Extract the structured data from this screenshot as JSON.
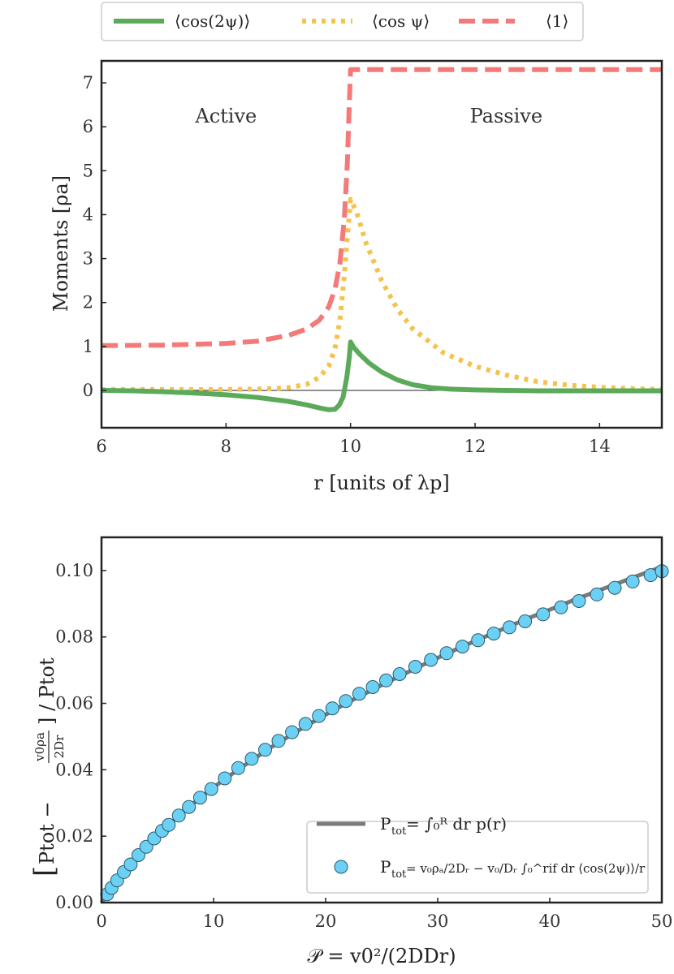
{
  "chart_data": [
    {
      "type": "line",
      "xlabel": "r  [units of λp]",
      "ylabel": "Moments [ρa]",
      "xlim": [
        6,
        15
      ],
      "ylim": [
        -0.85,
        7.5
      ],
      "xticks": [
        "6",
        "8",
        "10",
        "12",
        "14"
      ],
      "xtick_values": [
        6,
        8,
        10,
        12,
        14
      ],
      "yticks": [
        "0",
        "1",
        "2",
        "3",
        "4",
        "5",
        "6",
        "7"
      ],
      "ytick_values": [
        0,
        1,
        2,
        3,
        4,
        5,
        6,
        7
      ],
      "annotations": [
        {
          "text": "Active",
          "x": 8,
          "y": 6.1
        },
        {
          "text": "Passive",
          "x": 12.5,
          "y": 6.1
        }
      ],
      "legend_position": "top (outside)",
      "series": [
        {
          "name": "⟨cos(2ψ)⟩",
          "color": "#5aaa5a",
          "style": "solid",
          "x": [
            6,
            6.5,
            7,
            7.5,
            8,
            8.5,
            9,
            9.3,
            9.5,
            9.65,
            9.75,
            9.82,
            9.88,
            9.94,
            9.98,
            10.0,
            10.05,
            10.15,
            10.3,
            10.5,
            10.75,
            11,
            11.3,
            11.6,
            12,
            12.5,
            13,
            14,
            15
          ],
          "values": [
            0,
            -0.01,
            -0.03,
            -0.06,
            -0.1,
            -0.16,
            -0.25,
            -0.33,
            -0.4,
            -0.44,
            -0.43,
            -0.33,
            -0.15,
            0.3,
            0.75,
            1.1,
            0.98,
            0.82,
            0.62,
            0.42,
            0.24,
            0.13,
            0.06,
            0.03,
            0.01,
            0.0,
            -0.01,
            -0.01,
            -0.01
          ]
        },
        {
          "name": "⟨cos ψ⟩",
          "color": "#f5c24e",
          "style": "dotted",
          "x": [
            6,
            7,
            8,
            8.5,
            9,
            9.3,
            9.5,
            9.65,
            9.75,
            9.83,
            9.9,
            9.95,
            10.0,
            10.1,
            10.25,
            10.5,
            10.75,
            11,
            11.5,
            12,
            12.5,
            13,
            13.5,
            14,
            14.5,
            15
          ],
          "values": [
            0.02,
            0.02,
            0.02,
            0.03,
            0.06,
            0.14,
            0.3,
            0.55,
            0.95,
            1.6,
            2.6,
            3.5,
            4.35,
            4.05,
            3.35,
            2.5,
            1.85,
            1.4,
            0.85,
            0.55,
            0.35,
            0.2,
            0.12,
            0.07,
            0.04,
            0.02
          ]
        },
        {
          "name": "⟨1⟩",
          "color": "#f47a7a",
          "style": "dashed",
          "x": [
            6,
            7,
            8,
            8.5,
            9,
            9.3,
            9.5,
            9.65,
            9.75,
            9.83,
            9.9,
            9.95,
            9.98,
            10.0,
            10.1,
            12,
            15
          ],
          "values": [
            1.02,
            1.03,
            1.07,
            1.12,
            1.25,
            1.4,
            1.6,
            1.9,
            2.3,
            2.9,
            3.9,
            5.2,
            6.5,
            7.3,
            7.3,
            7.3,
            7.3
          ]
        }
      ]
    },
    {
      "type": "scatter",
      "xlabel": "𝒫 = v0²/(2DDr)",
      "ylabel_parts": [
        "[",
        "Ptot − ",
        "v0ρa",
        "2Dr",
        "] / Ptot"
      ],
      "xlim": [
        0,
        50
      ],
      "ylim": [
        0,
        0.11
      ],
      "xticks": [
        "0",
        "10",
        "20",
        "30",
        "40",
        "50"
      ],
      "xtick_values": [
        0,
        10,
        20,
        30,
        40,
        50
      ],
      "yticks": [
        "0.00",
        "0.02",
        "0.04",
        "0.06",
        "0.08",
        "0.10"
      ],
      "ytick_values": [
        0,
        0.02,
        0.04,
        0.06,
        0.08,
        0.1
      ],
      "legend_position": "lower right",
      "series": [
        {
          "name": "Ptot = ∫0R dr  p(r)",
          "kind": "line",
          "color": "#7a7a7a",
          "x": [
            0,
            0.5,
            1,
            2,
            3,
            4,
            5,
            6,
            8,
            10,
            12,
            15,
            18,
            20,
            22,
            25,
            28,
            30,
            32,
            35,
            38,
            40,
            42,
            45,
            48,
            50
          ],
          "values": [
            0,
            0.0025,
            0.0048,
            0.0092,
            0.013,
            0.0168,
            0.0203,
            0.0234,
            0.0293,
            0.0347,
            0.0396,
            0.0465,
            0.0527,
            0.0566,
            0.0603,
            0.0655,
            0.0705,
            0.0737,
            0.0768,
            0.0812,
            0.0855,
            0.0882,
            0.0909,
            0.0948,
            0.0986,
            0.1011
          ]
        },
        {
          "name": "Ptot = v0ρa/2Dr − v0/Dr ∫0rif dr⟨cos(2ψ)⟩/r",
          "kind": "scatter",
          "color": "#6cd0f5",
          "x": [
            0.5,
            0.9,
            1.4,
            2.0,
            2.6,
            3.3,
            4.0,
            4.7,
            5.4,
            6.0,
            6.9,
            7.8,
            8.8,
            9.8,
            11.0,
            12.2,
            13.4,
            14.6,
            15.8,
            17.0,
            18.2,
            19.4,
            20.6,
            21.8,
            23.0,
            24.2,
            25.4,
            26.6,
            28.0,
            29.4,
            30.8,
            32.2,
            33.6,
            35.0,
            36.4,
            37.8,
            39.4,
            41.0,
            42.6,
            44.2,
            45.8,
            47.4,
            49.0,
            50.0
          ],
          "values": [
            0.0025,
            0.0044,
            0.0067,
            0.0092,
            0.0115,
            0.0143,
            0.0168,
            0.0193,
            0.0216,
            0.0234,
            0.0262,
            0.0288,
            0.0316,
            0.0342,
            0.0374,
            0.0405,
            0.0433,
            0.046,
            0.0487,
            0.0513,
            0.0538,
            0.0562,
            0.0585,
            0.0607,
            0.0629,
            0.0649,
            0.0669,
            0.0688,
            0.071,
            0.0731,
            0.0751,
            0.0771,
            0.079,
            0.081,
            0.0829,
            0.0847,
            0.0868,
            0.0889,
            0.0908,
            0.0928,
            0.0948,
            0.0967,
            0.0986,
            0.0998
          ]
        }
      ]
    }
  ],
  "legend_top": {
    "entries": [
      {
        "label": "⟨cos(2ψ)⟩",
        "color": "#5aaa5a",
        "style": "solid"
      },
      {
        "label": "⟨cos ψ⟩",
        "color": "#f5c24e",
        "style": "dotted"
      },
      {
        "label": "⟨1⟩",
        "color": "#f47a7a",
        "style": "dashed"
      }
    ]
  },
  "legend_bottom": {
    "line_label_left": "P",
    "line_label_sub": "tot",
    "line_label_right": " = ∫₀ᴿ dr  p(r)",
    "dots_label_left": "P",
    "dots_label_sub": "tot",
    "dots_label_right": " = v₀ρₐ/2Dᵣ − v₀/Dᵣ ∫₀^rif dr ⟨cos(2ψ)⟩/r"
  }
}
